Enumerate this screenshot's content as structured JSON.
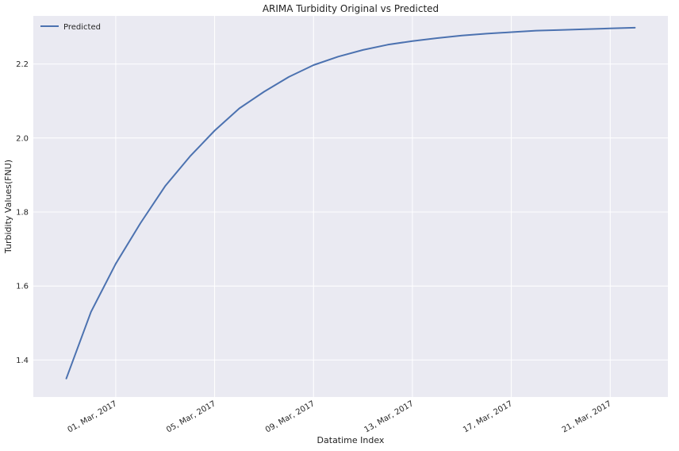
{
  "chart_data": {
    "type": "line",
    "title": "ARIMA Turbidity Original vs Predicted",
    "xlabel": "Datatime Index",
    "ylabel": "Turbidity Values(FNU)",
    "x_scale": "date",
    "xlim": [
      "2017-02-25T16:00",
      "2017-03-23T08:00"
    ],
    "ylim": [
      1.3,
      2.33
    ],
    "x_ticks": [
      "2017-03-01",
      "2017-03-05",
      "2017-03-09",
      "2017-03-13",
      "2017-03-17",
      "2017-03-21"
    ],
    "x_tick_labels": [
      "01, Mar, 2017",
      "05, Mar, 2017",
      "09, Mar, 2017",
      "13, Mar, 2017",
      "17, Mar, 2017",
      "21, Mar, 2017"
    ],
    "y_ticks": [
      1.4,
      1.6,
      1.8,
      2.0,
      2.2
    ],
    "y_tick_labels": [
      "1.4",
      "1.6",
      "1.8",
      "2.0",
      "2.2"
    ],
    "grid": true,
    "legend_position": "top-left",
    "series": [
      {
        "name": "Predicted",
        "color": "#4c72b0",
        "x": [
          "2017-02-27",
          "2017-02-28",
          "2017-03-01",
          "2017-03-02",
          "2017-03-03",
          "2017-03-04",
          "2017-03-05",
          "2017-03-06",
          "2017-03-07",
          "2017-03-08",
          "2017-03-09",
          "2017-03-10",
          "2017-03-11",
          "2017-03-12",
          "2017-03-13",
          "2017-03-14",
          "2017-03-15",
          "2017-03-16",
          "2017-03-17",
          "2017-03-18",
          "2017-03-19",
          "2017-03-20",
          "2017-03-21",
          "2017-03-22"
        ],
        "y": [
          1.35,
          1.53,
          1.66,
          1.77,
          1.87,
          1.95,
          2.02,
          2.08,
          2.125,
          2.165,
          2.197,
          2.22,
          2.238,
          2.252,
          2.262,
          2.27,
          2.277,
          2.282,
          2.286,
          2.29,
          2.292,
          2.294,
          2.296,
          2.298
        ]
      }
    ]
  }
}
